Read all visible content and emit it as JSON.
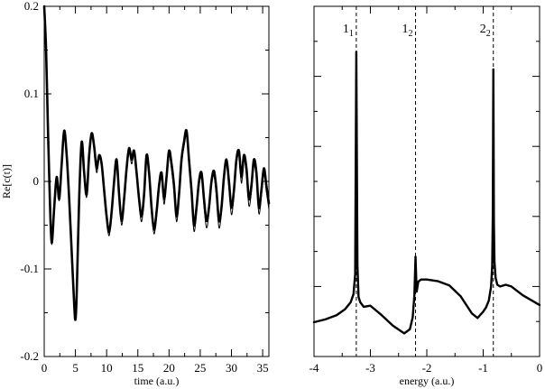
{
  "chart_data": [
    {
      "type": "line",
      "title": "",
      "xlabel": "time (a.u.)",
      "ylabel": "Re[c(t)]",
      "xlim": [
        0,
        36
      ],
      "ylim": [
        -0.2,
        0.2
      ],
      "xticks": [
        "0",
        "5",
        "10",
        "15",
        "20",
        "25",
        "30",
        "35"
      ],
      "yticks": [
        "-0.2",
        "-0.1",
        "0",
        "0.1",
        "0.2"
      ],
      "grid": false,
      "series": [
        {
          "style": "thick",
          "x": [
            0,
            0.3,
            0.6,
            0.9,
            1.2,
            1.6,
            2.0,
            2.4,
            2.8,
            3.2,
            3.6,
            4.0,
            4.4,
            4.8,
            5.0,
            5.2,
            5.6,
            6.0,
            6.4,
            6.8,
            7.2,
            7.6,
            8.0,
            8.4,
            8.8,
            9.2,
            9.6,
            10.0,
            10.4,
            10.8,
            11.2,
            11.6,
            12.0,
            12.4,
            12.8,
            13.2,
            13.6,
            14.0,
            14.4,
            14.8,
            15.2,
            15.6,
            16.0,
            16.4,
            16.8,
            17.2,
            17.6,
            18.0,
            18.4,
            18.8,
            19.2,
            19.6,
            20.0,
            20.4,
            20.8,
            21.2,
            21.6,
            22.0,
            22.4,
            22.8,
            23.2,
            23.6,
            24.0,
            24.4,
            24.8,
            25.2,
            25.6,
            26.0,
            26.4,
            26.8,
            27.2,
            27.6,
            28.0,
            28.4,
            28.8,
            29.2,
            29.6,
            30.0,
            30.4,
            30.8,
            31.2,
            31.6,
            32.0,
            32.4,
            32.8,
            33.2,
            33.6,
            34.0,
            34.4,
            34.8,
            35.2,
            35.6,
            36.0
          ],
          "y": [
            0.2,
            0.15,
            0.06,
            -0.02,
            -0.07,
            -0.03,
            0.005,
            -0.02,
            0.02,
            0.058,
            0.03,
            -0.02,
            -0.08,
            -0.14,
            -0.158,
            -0.13,
            -0.02,
            0.045,
            0.01,
            -0.015,
            0.03,
            0.055,
            0.04,
            0.015,
            0.03,
            0.02,
            -0.01,
            -0.04,
            -0.058,
            -0.035,
            0.0,
            0.025,
            -0.015,
            -0.045,
            -0.02,
            0.015,
            0.038,
            0.025,
            0.035,
            0.01,
            -0.02,
            -0.04,
            -0.015,
            0.03,
            0.01,
            -0.03,
            -0.055,
            -0.035,
            -0.005,
            0.01,
            -0.02,
            0.005,
            0.035,
            0.02,
            -0.005,
            -0.04,
            -0.015,
            0.025,
            0.045,
            0.058,
            0.025,
            -0.01,
            -0.05,
            -0.03,
            0.0,
            0.01,
            -0.02,
            -0.045,
            -0.03,
            0.0,
            0.012,
            -0.01,
            -0.045,
            -0.03,
            0.005,
            0.025,
            0.0,
            -0.03,
            -0.01,
            0.025,
            0.035,
            0.005,
            0.03,
            0.015,
            -0.02,
            -0.005,
            0.025,
            0.01,
            -0.03,
            -0.01,
            0.015,
            -0.005,
            -0.025
          ]
        },
        {
          "style": "thin",
          "x": [
            0,
            0.3,
            0.6,
            0.9,
            1.2,
            1.6,
            2.0,
            2.4,
            2.8,
            3.2,
            3.6,
            4.0,
            4.4,
            4.8,
            5.0,
            5.2,
            5.6,
            6.0,
            6.4,
            6.8,
            7.2,
            7.6,
            8.0,
            8.4,
            8.8,
            9.2,
            9.6,
            10.0,
            10.4,
            10.8,
            11.2,
            11.6,
            12.0,
            12.4,
            12.8,
            13.2,
            13.6,
            14.0,
            14.4,
            14.8,
            15.2,
            15.6,
            16.0,
            16.4,
            16.8,
            17.2,
            17.6,
            18.0,
            18.4,
            18.8,
            19.2,
            19.6,
            20.0,
            20.4,
            20.8,
            21.2,
            21.6,
            22.0,
            22.4,
            22.8,
            23.2,
            23.6,
            24.0,
            24.4,
            24.8,
            25.2,
            25.6,
            26.0,
            26.4,
            26.8,
            27.2,
            27.6,
            28.0,
            28.4,
            28.8,
            29.2,
            29.6,
            30.0,
            30.4,
            30.8,
            31.2,
            31.6,
            32.0,
            32.4,
            32.8,
            33.2,
            33.6,
            34.0,
            34.4,
            34.8,
            35.2,
            35.6,
            36.0
          ],
          "y": [
            0.2,
            0.15,
            0.06,
            -0.02,
            -0.072,
            -0.03,
            0.005,
            -0.022,
            0.02,
            0.058,
            0.03,
            -0.022,
            -0.08,
            -0.14,
            -0.158,
            -0.13,
            -0.022,
            0.043,
            0.008,
            -0.018,
            0.028,
            0.053,
            0.036,
            0.01,
            0.026,
            0.016,
            -0.015,
            -0.045,
            -0.062,
            -0.04,
            -0.005,
            0.02,
            -0.02,
            -0.05,
            -0.025,
            0.01,
            0.034,
            0.02,
            0.03,
            0.005,
            -0.026,
            -0.046,
            -0.02,
            0.025,
            0.005,
            -0.036,
            -0.06,
            -0.04,
            -0.01,
            0.005,
            -0.026,
            0.0,
            0.03,
            0.014,
            -0.012,
            -0.046,
            -0.02,
            0.02,
            0.04,
            0.052,
            0.018,
            -0.018,
            -0.057,
            -0.036,
            -0.006,
            0.004,
            -0.028,
            -0.053,
            -0.036,
            -0.004,
            0.006,
            -0.018,
            -0.053,
            -0.036,
            0.0,
            0.02,
            -0.008,
            -0.038,
            -0.016,
            0.02,
            0.03,
            -0.002,
            0.024,
            0.008,
            -0.028,
            -0.012,
            0.018,
            0.003,
            -0.037,
            -0.017,
            0.008,
            -0.012,
            -0.032
          ]
        }
      ]
    },
    {
      "type": "line",
      "title": "",
      "xlabel": "energy (a.u.)",
      "ylabel": "",
      "xlim": [
        -4,
        0
      ],
      "ylim": [
        0,
        1
      ],
      "xticks": [
        "-4",
        "-3",
        "-2",
        "-1",
        "0"
      ],
      "grid": false,
      "peak_markers": [
        {
          "x": -3.25,
          "label": "1",
          "sub": "1"
        },
        {
          "x": -2.2,
          "label": "1",
          "sub": "2"
        },
        {
          "x": -0.82,
          "label": "2",
          "sub": "2"
        }
      ],
      "series": [
        {
          "style": "thick",
          "x": [
            -4.0,
            -3.8,
            -3.6,
            -3.45,
            -3.35,
            -3.3,
            -3.27,
            -3.25,
            -3.23,
            -3.21,
            -3.18,
            -3.12,
            -3.0,
            -2.8,
            -2.6,
            -2.4,
            -2.3,
            -2.25,
            -2.22,
            -2.2,
            -2.18,
            -2.15,
            -2.1,
            -2.0,
            -1.8,
            -1.6,
            -1.4,
            -1.2,
            -1.1,
            -1.0,
            -0.95,
            -0.9,
            -0.86,
            -0.84,
            -0.83,
            -0.82,
            -0.81,
            -0.8,
            -0.78,
            -0.75,
            -0.7,
            -0.6,
            -0.5,
            -0.3,
            0.0
          ],
          "y": [
            0.098,
            0.106,
            0.118,
            0.135,
            0.155,
            0.178,
            0.235,
            0.87,
            0.26,
            0.17,
            0.155,
            0.142,
            0.145,
            0.118,
            0.088,
            0.066,
            0.078,
            0.112,
            0.175,
            0.285,
            0.185,
            0.214,
            0.22,
            0.22,
            0.215,
            0.203,
            0.172,
            0.123,
            0.11,
            0.128,
            0.14,
            0.16,
            0.2,
            0.26,
            0.4,
            0.82,
            0.38,
            0.27,
            0.225,
            0.205,
            0.2,
            0.205,
            0.2,
            0.175,
            0.147
          ]
        }
      ]
    }
  ]
}
